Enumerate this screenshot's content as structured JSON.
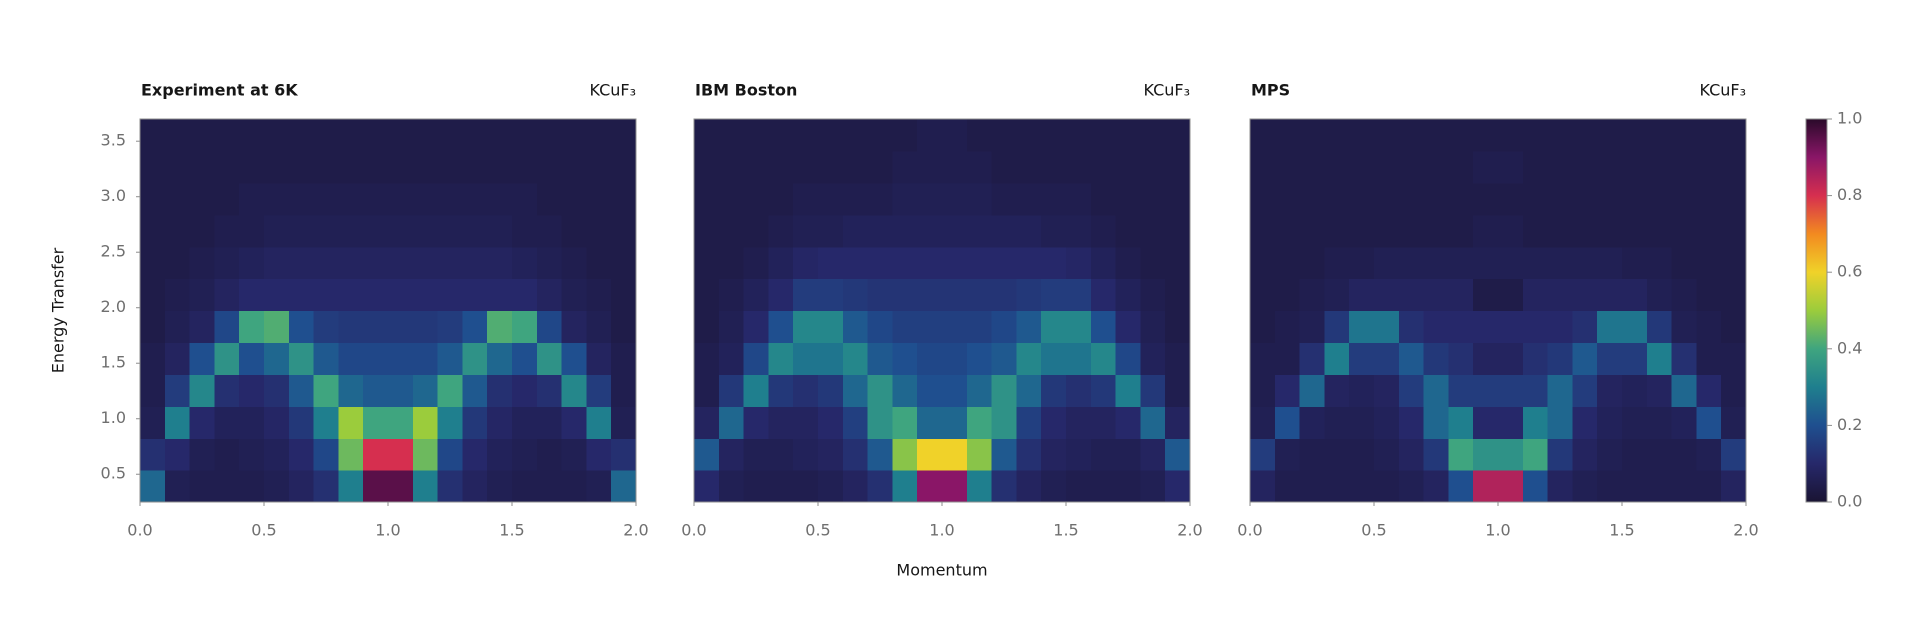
{
  "chart_data": [
    {
      "type": "heatmap",
      "title": "Experiment at 6K",
      "subtitle": "KCuF₃",
      "ylabel": "Energy Transfer",
      "xlim": [
        0,
        2
      ],
      "ylim": [
        0.25,
        3.7
      ],
      "xticks": [
        {
          "value": 0,
          "label": "0.0"
        },
        0.5,
        {
          "value": 1,
          "label": "1.0"
        },
        1.5,
        {
          "value": 2,
          "label": "2.0"
        }
      ],
      "yticks": [
        0.5,
        {
          "value": 1,
          "label": "1.0"
        },
        1.5,
        {
          "value": 2,
          "label": "2.0"
        },
        2.5,
        {
          "value": 3,
          "label": "3.0"
        },
        3.5
      ],
      "z": [
        [
          0.25,
          0.06,
          0.05,
          0.05,
          0.05,
          0.06,
          0.08,
          0.12,
          0.3,
          0.95,
          0.95,
          0.3,
          0.12,
          0.08,
          0.06,
          0.05,
          0.05,
          0.05,
          0.06,
          0.25
        ],
        [
          0.12,
          0.1,
          0.06,
          0.05,
          0.06,
          0.07,
          0.1,
          0.18,
          0.45,
          0.8,
          0.8,
          0.45,
          0.18,
          0.1,
          0.07,
          0.06,
          0.05,
          0.06,
          0.1,
          0.12
        ],
        [
          0.06,
          0.3,
          0.1,
          0.07,
          0.07,
          0.09,
          0.14,
          0.3,
          0.5,
          0.4,
          0.4,
          0.5,
          0.3,
          0.14,
          0.09,
          0.07,
          0.07,
          0.1,
          0.3,
          0.06
        ],
        [
          0.05,
          0.15,
          0.32,
          0.12,
          0.1,
          0.12,
          0.22,
          0.4,
          0.25,
          0.22,
          0.22,
          0.25,
          0.4,
          0.22,
          0.12,
          0.1,
          0.12,
          0.32,
          0.15,
          0.05
        ],
        [
          0.05,
          0.08,
          0.2,
          0.35,
          0.2,
          0.25,
          0.35,
          0.22,
          0.18,
          0.18,
          0.18,
          0.18,
          0.22,
          0.35,
          0.25,
          0.2,
          0.35,
          0.2,
          0.08,
          0.05
        ],
        [
          0.04,
          0.06,
          0.08,
          0.18,
          0.4,
          0.42,
          0.2,
          0.15,
          0.14,
          0.14,
          0.14,
          0.14,
          0.15,
          0.2,
          0.42,
          0.4,
          0.18,
          0.08,
          0.06,
          0.04
        ],
        [
          0.04,
          0.05,
          0.06,
          0.08,
          0.1,
          0.1,
          0.1,
          0.1,
          0.1,
          0.1,
          0.1,
          0.1,
          0.1,
          0.1,
          0.1,
          0.1,
          0.08,
          0.06,
          0.05,
          0.04
        ],
        [
          0.04,
          0.04,
          0.05,
          0.06,
          0.07,
          0.08,
          0.08,
          0.08,
          0.08,
          0.08,
          0.08,
          0.08,
          0.08,
          0.08,
          0.08,
          0.07,
          0.06,
          0.05,
          0.04,
          0.04
        ],
        [
          0.04,
          0.04,
          0.04,
          0.05,
          0.05,
          0.06,
          0.06,
          0.06,
          0.06,
          0.06,
          0.06,
          0.06,
          0.06,
          0.06,
          0.06,
          0.05,
          0.05,
          0.04,
          0.04,
          0.04
        ],
        [
          0.04,
          0.04,
          0.04,
          0.04,
          0.05,
          0.05,
          0.05,
          0.05,
          0.05,
          0.05,
          0.05,
          0.05,
          0.05,
          0.05,
          0.05,
          0.05,
          0.04,
          0.04,
          0.04,
          0.04
        ],
        [
          0.04,
          0.04,
          0.04,
          0.04,
          0.04,
          0.04,
          0.04,
          0.04,
          0.04,
          0.04,
          0.04,
          0.04,
          0.04,
          0.04,
          0.04,
          0.04,
          0.04,
          0.04,
          0.04,
          0.04
        ],
        [
          0.04,
          0.04,
          0.04,
          0.04,
          0.04,
          0.04,
          0.04,
          0.04,
          0.04,
          0.04,
          0.04,
          0.04,
          0.04,
          0.04,
          0.04,
          0.04,
          0.04,
          0.04,
          0.04,
          0.04
        ]
      ]
    },
    {
      "type": "heatmap",
      "title": "IBM Boston",
      "subtitle": "KCuF₃",
      "xlabel": "Momentum",
      "xlim": [
        0,
        2
      ],
      "ylim": [
        0.25,
        3.7
      ],
      "xticks": [
        {
          "value": 0,
          "label": "0.0"
        },
        0.5,
        {
          "value": 1,
          "label": "1.0"
        },
        1.5,
        {
          "value": 2,
          "label": "2.0"
        }
      ],
      "z": [
        [
          0.1,
          0.06,
          0.05,
          0.05,
          0.05,
          0.06,
          0.08,
          0.12,
          0.3,
          0.9,
          0.9,
          0.3,
          0.12,
          0.08,
          0.06,
          0.05,
          0.05,
          0.05,
          0.06,
          0.1
        ],
        [
          0.22,
          0.08,
          0.06,
          0.06,
          0.07,
          0.08,
          0.12,
          0.22,
          0.48,
          0.6,
          0.6,
          0.48,
          0.22,
          0.12,
          0.08,
          0.07,
          0.06,
          0.06,
          0.08,
          0.22
        ],
        [
          0.08,
          0.25,
          0.1,
          0.08,
          0.08,
          0.1,
          0.16,
          0.35,
          0.4,
          0.25,
          0.25,
          0.4,
          0.35,
          0.16,
          0.1,
          0.08,
          0.08,
          0.1,
          0.25,
          0.08
        ],
        [
          0.05,
          0.14,
          0.3,
          0.14,
          0.12,
          0.14,
          0.25,
          0.35,
          0.25,
          0.2,
          0.2,
          0.25,
          0.35,
          0.25,
          0.14,
          0.12,
          0.14,
          0.3,
          0.14,
          0.05
        ],
        [
          0.05,
          0.07,
          0.18,
          0.32,
          0.28,
          0.28,
          0.32,
          0.22,
          0.2,
          0.18,
          0.18,
          0.2,
          0.22,
          0.32,
          0.28,
          0.28,
          0.32,
          0.18,
          0.07,
          0.05
        ],
        [
          0.04,
          0.06,
          0.1,
          0.2,
          0.32,
          0.32,
          0.22,
          0.18,
          0.16,
          0.16,
          0.16,
          0.16,
          0.18,
          0.22,
          0.32,
          0.32,
          0.2,
          0.1,
          0.06,
          0.04
        ],
        [
          0.04,
          0.05,
          0.07,
          0.1,
          0.15,
          0.15,
          0.14,
          0.13,
          0.13,
          0.13,
          0.13,
          0.13,
          0.13,
          0.14,
          0.15,
          0.15,
          0.1,
          0.07,
          0.05,
          0.04
        ],
        [
          0.04,
          0.04,
          0.05,
          0.07,
          0.09,
          0.1,
          0.1,
          0.1,
          0.1,
          0.1,
          0.1,
          0.1,
          0.1,
          0.1,
          0.1,
          0.09,
          0.07,
          0.05,
          0.04,
          0.04
        ],
        [
          0.04,
          0.04,
          0.04,
          0.05,
          0.06,
          0.06,
          0.07,
          0.07,
          0.07,
          0.07,
          0.07,
          0.07,
          0.07,
          0.07,
          0.06,
          0.06,
          0.05,
          0.04,
          0.04,
          0.04
        ],
        [
          0.04,
          0.04,
          0.04,
          0.04,
          0.05,
          0.05,
          0.05,
          0.05,
          0.06,
          0.06,
          0.06,
          0.06,
          0.05,
          0.05,
          0.05,
          0.05,
          0.04,
          0.04,
          0.04,
          0.04
        ],
        [
          0.04,
          0.04,
          0.04,
          0.04,
          0.04,
          0.04,
          0.04,
          0.04,
          0.05,
          0.05,
          0.05,
          0.05,
          0.04,
          0.04,
          0.04,
          0.04,
          0.04,
          0.04,
          0.04,
          0.04
        ],
        [
          0.04,
          0.04,
          0.04,
          0.04,
          0.04,
          0.04,
          0.04,
          0.04,
          0.04,
          0.05,
          0.05,
          0.04,
          0.04,
          0.04,
          0.04,
          0.04,
          0.04,
          0.04,
          0.04,
          0.04
        ]
      ]
    },
    {
      "type": "heatmap",
      "title": "MPS",
      "subtitle": "KCuF₃",
      "xlim": [
        0,
        2
      ],
      "ylim": [
        0.25,
        3.7
      ],
      "xticks": [
        {
          "value": 0,
          "label": "0.0"
        },
        0.5,
        {
          "value": 1,
          "label": "1.0"
        },
        1.5,
        {
          "value": 2,
          "label": "2.0"
        }
      ],
      "z": [
        [
          0.08,
          0.05,
          0.05,
          0.05,
          0.05,
          0.05,
          0.06,
          0.08,
          0.2,
          0.85,
          0.85,
          0.2,
          0.08,
          0.06,
          0.05,
          0.05,
          0.05,
          0.05,
          0.05,
          0.08
        ],
        [
          0.15,
          0.06,
          0.05,
          0.05,
          0.05,
          0.06,
          0.08,
          0.14,
          0.4,
          0.35,
          0.35,
          0.4,
          0.14,
          0.08,
          0.06,
          0.05,
          0.05,
          0.05,
          0.06,
          0.15
        ],
        [
          0.06,
          0.2,
          0.07,
          0.06,
          0.06,
          0.07,
          0.1,
          0.25,
          0.3,
          0.1,
          0.1,
          0.3,
          0.25,
          0.1,
          0.07,
          0.06,
          0.06,
          0.07,
          0.2,
          0.06
        ],
        [
          0.05,
          0.1,
          0.25,
          0.08,
          0.07,
          0.08,
          0.15,
          0.25,
          0.15,
          0.15,
          0.15,
          0.15,
          0.25,
          0.15,
          0.08,
          0.07,
          0.08,
          0.25,
          0.1,
          0.05
        ],
        [
          0.05,
          0.05,
          0.12,
          0.3,
          0.15,
          0.15,
          0.22,
          0.14,
          0.12,
          0.08,
          0.08,
          0.12,
          0.14,
          0.22,
          0.15,
          0.15,
          0.3,
          0.12,
          0.05,
          0.05
        ],
        [
          0.04,
          0.05,
          0.06,
          0.14,
          0.28,
          0.28,
          0.12,
          0.1,
          0.1,
          0.1,
          0.1,
          0.1,
          0.1,
          0.12,
          0.28,
          0.28,
          0.14,
          0.06,
          0.05,
          0.04
        ],
        [
          0.04,
          0.04,
          0.05,
          0.06,
          0.08,
          0.08,
          0.08,
          0.08,
          0.08,
          0.04,
          0.04,
          0.08,
          0.08,
          0.08,
          0.08,
          0.08,
          0.06,
          0.05,
          0.04,
          0.04
        ],
        [
          0.04,
          0.04,
          0.04,
          0.05,
          0.05,
          0.06,
          0.06,
          0.06,
          0.06,
          0.06,
          0.06,
          0.06,
          0.06,
          0.06,
          0.06,
          0.05,
          0.05,
          0.04,
          0.04,
          0.04
        ],
        [
          0.04,
          0.04,
          0.04,
          0.04,
          0.04,
          0.04,
          0.04,
          0.04,
          0.04,
          0.05,
          0.05,
          0.04,
          0.04,
          0.04,
          0.04,
          0.04,
          0.04,
          0.04,
          0.04,
          0.04
        ],
        [
          0.04,
          0.04,
          0.04,
          0.04,
          0.04,
          0.04,
          0.04,
          0.04,
          0.04,
          0.04,
          0.04,
          0.04,
          0.04,
          0.04,
          0.04,
          0.04,
          0.04,
          0.04,
          0.04,
          0.04
        ],
        [
          0.04,
          0.04,
          0.04,
          0.04,
          0.04,
          0.04,
          0.04,
          0.04,
          0.04,
          0.05,
          0.05,
          0.04,
          0.04,
          0.04,
          0.04,
          0.04,
          0.04,
          0.04,
          0.04,
          0.04
        ],
        [
          0.04,
          0.04,
          0.04,
          0.04,
          0.04,
          0.04,
          0.04,
          0.04,
          0.04,
          0.04,
          0.04,
          0.04,
          0.04,
          0.04,
          0.04,
          0.04,
          0.04,
          0.04,
          0.04,
          0.04
        ]
      ]
    }
  ],
  "colorbar": {
    "lim": [
      0,
      1
    ],
    "ticks": [
      {
        "value": 0,
        "label": "0.0"
      },
      0.2,
      0.4,
      0.6,
      0.8,
      {
        "value": 1,
        "label": "1.0"
      }
    ],
    "colors": [
      "#1a1433",
      "#26286a",
      "#1f4f8f",
      "#1f7f8e",
      "#3fa57f",
      "#9bcc3c",
      "#f0d229",
      "#f28a20",
      "#d62f4f",
      "#8a1667",
      "#2a0a2a"
    ]
  }
}
